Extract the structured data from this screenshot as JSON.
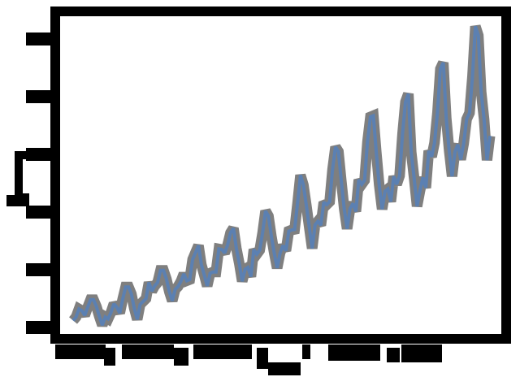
{
  "chart_data": {
    "type": "line",
    "title": "",
    "xlabel": "",
    "ylabel": "",
    "xlim": [
      1,
      144
    ],
    "ylim": [
      100,
      625
    ],
    "yticks": [
      100,
      200,
      300,
      400,
      500,
      600
    ],
    "grid": false,
    "legend": "none",
    "series": [
      {
        "color_back": "#7f7f7f",
        "color_front": "#5b80b2",
        "values": [
          112,
          118,
          132,
          129,
          121,
          135,
          148,
          148,
          136,
          119,
          104,
          118,
          115,
          126,
          141,
          135,
          125,
          149,
          170,
          170,
          158,
          133,
          114,
          140,
          145,
          150,
          178,
          163,
          172,
          178,
          199,
          199,
          184,
          162,
          146,
          166,
          171,
          180,
          193,
          181,
          183,
          218,
          230,
          242,
          209,
          191,
          172,
          194,
          196,
          196,
          236,
          235,
          229,
          243,
          264,
          272,
          237,
          211,
          180,
          201,
          204,
          188,
          235,
          227,
          234,
          264,
          302,
          293,
          259,
          229,
          203,
          229,
          242,
          233,
          267,
          269,
          270,
          315,
          364,
          347,
          312,
          274,
          237,
          278,
          284,
          277,
          317,
          313,
          318,
          374,
          413,
          405,
          355,
          306,
          271,
          306,
          315,
          301,
          356,
          348,
          355,
          422,
          465,
          467,
          404,
          347,
          305,
          336,
          340,
          318,
          362,
          348,
          363,
          435,
          491,
          505,
          404,
          359,
          310,
          337,
          360,
          342,
          406,
          396,
          420,
          472,
          548,
          559,
          463,
          407,
          362,
          405,
          417,
          391,
          419,
          461,
          472,
          535,
          622,
          606,
          508,
          461,
          390,
          432
        ]
      }
    ]
  }
}
